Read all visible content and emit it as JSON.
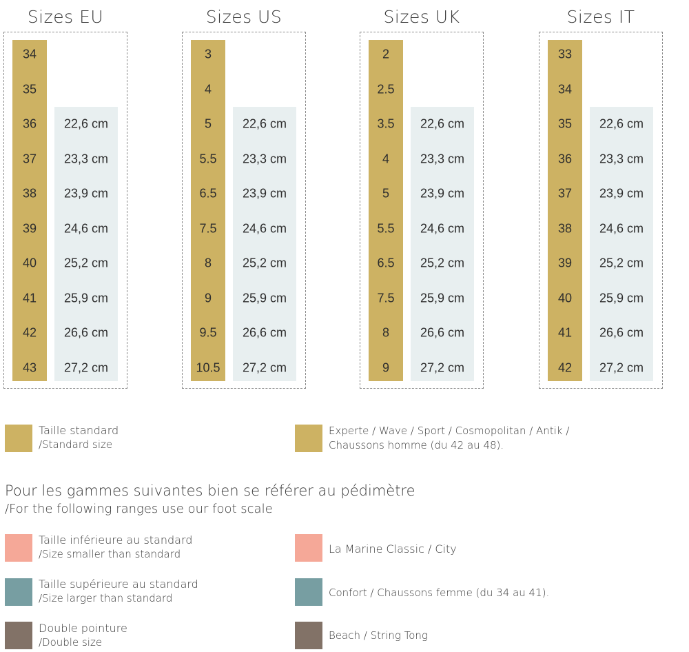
{
  "colors": {
    "standard": "#cdb263",
    "smaller": "#f5a898",
    "larger": "#779ea2",
    "double": "#827267",
    "cm_background": "#e8eff0"
  },
  "tables": [
    {
      "title": "Sizes EU",
      "sizes": [
        "34",
        "35",
        "36",
        "37",
        "38",
        "39",
        "40",
        "41",
        "42",
        "43"
      ],
      "cm": [
        "22,6 cm",
        "23,3 cm",
        "23,9 cm",
        "24,6 cm",
        "25,2 cm",
        "25,9 cm",
        "26,6 cm",
        "27,2 cm"
      ]
    },
    {
      "title": "Sizes US",
      "sizes": [
        "3",
        "4",
        "5",
        "5.5",
        "6.5",
        "7.5",
        "8",
        "9",
        "9.5",
        "10.5"
      ],
      "cm": [
        "22,6 cm",
        "23,3 cm",
        "23,9 cm",
        "24,6 cm",
        "25,2 cm",
        "25,9 cm",
        "26,6 cm",
        "27,2 cm"
      ]
    },
    {
      "title": "Sizes UK",
      "sizes": [
        "2",
        "2.5",
        "3.5",
        "4",
        "5",
        "5.5",
        "6.5",
        "7.5",
        "8",
        "9"
      ],
      "cm": [
        "22,6 cm",
        "23,3 cm",
        "23,9 cm",
        "24,6 cm",
        "25,2 cm",
        "25,9 cm",
        "26,6 cm",
        "27,2 cm"
      ]
    },
    {
      "title": "Sizes IT",
      "sizes": [
        "33",
        "34",
        "35",
        "36",
        "37",
        "38",
        "39",
        "40",
        "41",
        "42"
      ],
      "cm": [
        "22,6 cm",
        "23,3 cm",
        "23,9 cm",
        "24,6 cm",
        "25,2 cm",
        "25,9 cm",
        "26,6 cm",
        "27,2 cm"
      ]
    }
  ],
  "legend_top": {
    "standard": {
      "line1": "Taille standard",
      "line2": "/Standard size"
    },
    "experte": {
      "line1": "Experte / Wave / Sport / Cosmopolitan / Antik /",
      "line2": "Chaussons homme (du 42 au 48)."
    }
  },
  "note": {
    "line1": "Pour les gammes suivantes bien se référer au pédimètre",
    "line2": "/For the following ranges use our foot scale"
  },
  "legend_bottom": {
    "smaller": {
      "line1": "Taille inférieure au standard",
      "line2": "/Size smaller than standard",
      "range": "La Marine Classic / City"
    },
    "larger": {
      "line1": "Taille supérieure au standard",
      "line2": "/Size larger than standard",
      "range": "Confort / Chaussons femme (du 34 au 41)."
    },
    "double": {
      "line1": "Double pointure",
      "line2": "/Double size",
      "range": "Beach / String Tong"
    }
  }
}
